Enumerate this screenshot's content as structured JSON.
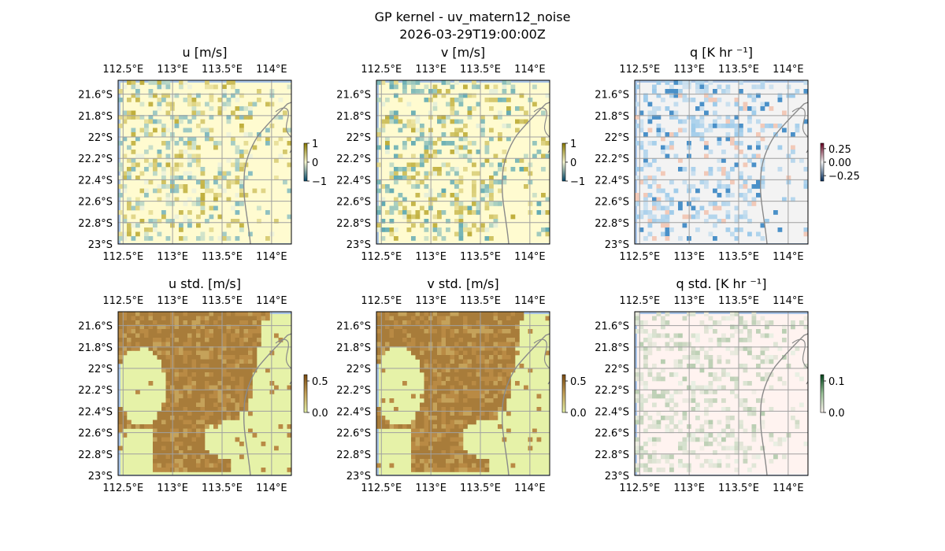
{
  "figure": {
    "title_line1": "GP kernel - uv_matern12_noise",
    "title_line2": "2026-03-29T19:00:00Z"
  },
  "chart_data": {
    "type": "heatmap",
    "x_ticks": [
      "112.5°E",
      "113°E",
      "113.5°E",
      "114°E"
    ],
    "x_tick_values": [
      112.5,
      113.0,
      113.5,
      114.0
    ],
    "y_ticks": [
      "21.6°S",
      "21.8°S",
      "22°S",
      "22.2°S",
      "22.4°S",
      "22.6°S",
      "22.8°S",
      "23°S"
    ],
    "y_tick_values": [
      -21.6,
      -21.8,
      -22.0,
      -22.2,
      -22.4,
      -22.6,
      -22.8,
      -23.0
    ],
    "xlim": [
      112.45,
      114.2
    ],
    "ylim": [
      -23.0,
      -21.47
    ],
    "grid": true,
    "panels": [
      {
        "id": "u",
        "title": "u [m/s]",
        "colorbar_ticks": [
          "1",
          "0",
          "−1"
        ],
        "colorbar_values": [
          1,
          0,
          -1
        ],
        "range": [
          -1,
          1
        ],
        "colors": {
          "bg": "#fffbd0",
          "a": "#bfae3a",
          "b": "#7cb7be",
          "c": "#eef2da"
        }
      },
      {
        "id": "v",
        "title": "v [m/s]",
        "colorbar_ticks": [
          "1",
          "0",
          "−1"
        ],
        "colorbar_values": [
          1,
          0,
          -1
        ],
        "range": [
          -1,
          1
        ],
        "colors": {
          "bg": "#fffbd0",
          "a": "#bfae3a",
          "b": "#5fa9b2",
          "c": "#e6efd8"
        }
      },
      {
        "id": "q",
        "title": "q [K hr ⁻¹]",
        "colorbar_ticks": [
          "0.25",
          "0.00",
          "−0.25"
        ],
        "colorbar_values": [
          0.25,
          0,
          -0.25
        ],
        "range": [
          -0.35,
          0.35
        ],
        "colors": {
          "bg": "#f3f3f3",
          "a": "#f2c9b8",
          "b": "#9ccaea",
          "c": "#4a90c8"
        }
      },
      {
        "id": "ustd",
        "title": "u std. [m/s]",
        "colorbar_ticks": [
          "0.5",
          "0.0"
        ],
        "colorbar_values": [
          0.5,
          0
        ],
        "range": [
          0,
          0.6
        ],
        "colors": {
          "bg": "#e6f2a8",
          "a": "#a87c3a",
          "b": "#b98a44",
          "c": "#c5a25a"
        }
      },
      {
        "id": "vstd",
        "title": "v std. [m/s]",
        "colorbar_ticks": [
          "0.5",
          "0.0"
        ],
        "colorbar_values": [
          0.5,
          0
        ],
        "range": [
          0,
          0.6
        ],
        "colors": {
          "bg": "#e6f2a8",
          "a": "#a87c3a",
          "b": "#b98a44",
          "c": "#c5a25a"
        }
      },
      {
        "id": "qstd",
        "title": "q std. [K hr ⁻¹]",
        "colorbar_ticks": [
          "0.1",
          "0.0"
        ],
        "colorbar_values": [
          0.1,
          0
        ],
        "range": [
          0,
          0.12
        ],
        "colors": {
          "bg": "#fff3f0",
          "a": "#b7cdb0",
          "b": "#d3e0cc",
          "c": "#e9efe3"
        }
      }
    ]
  }
}
